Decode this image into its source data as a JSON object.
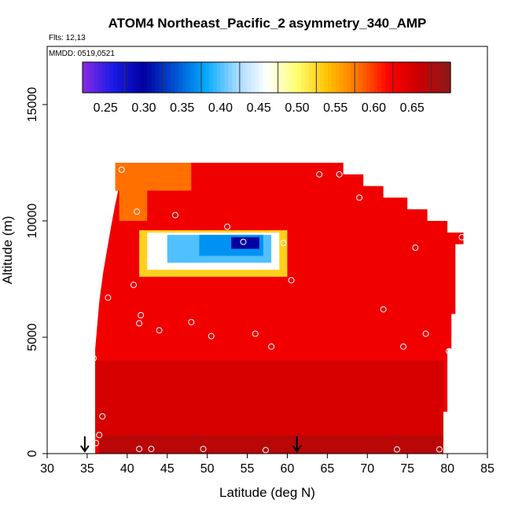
{
  "chart_data": {
    "type": "heatmap",
    "title": "ATOM4 Northeast_Pacific_2 asymmetry_340_AMP",
    "flights_label": "Flts: 12,13",
    "date_label": "MMDD: 0519,0521",
    "xlabel": "Latitude (deg N)",
    "ylabel": "Altitude (m)",
    "xlim": [
      30,
      85
    ],
    "ylim": [
      0,
      17500
    ],
    "x_ticks": [
      30,
      35,
      40,
      45,
      50,
      55,
      60,
      65,
      70,
      75,
      80,
      85
    ],
    "y_ticks": [
      0,
      5000,
      10000,
      15000
    ],
    "colorbar": {
      "min": 0.22,
      "max": 0.7,
      "ticks": [
        0.25,
        0.3,
        0.35,
        0.4,
        0.45,
        0.5,
        0.55,
        0.6,
        0.65
      ],
      "tick_labels": [
        "0.25",
        "0.30",
        "0.35",
        "0.40",
        "0.45",
        "0.50",
        "0.55",
        "0.60",
        "0.65"
      ],
      "colors": [
        "#8a2be2",
        "#1a1ae6",
        "#0000a0",
        "#0050d0",
        "#00a8ff",
        "#9fd8ff",
        "#ffffff",
        "#ffff70",
        "#ffc000",
        "#ff7000",
        "#ff0000",
        "#c80000",
        "#8b1a1a"
      ]
    },
    "background_value": 0.63,
    "region_outline": [
      [
        36.0,
        0
      ],
      [
        36.0,
        4500
      ],
      [
        36.5,
        6500
      ],
      [
        37.0,
        7800
      ],
      [
        37.5,
        8800
      ],
      [
        38.0,
        9800
      ],
      [
        38.5,
        10700
      ],
      [
        39.0,
        11500
      ],
      [
        39.2,
        12500
      ],
      [
        67.0,
        12500
      ],
      [
        67.0,
        12000
      ],
      [
        69.5,
        12000
      ],
      [
        69.5,
        11500
      ],
      [
        72.0,
        11500
      ],
      [
        72.0,
        11000
      ],
      [
        75.0,
        11000
      ],
      [
        75.0,
        10500
      ],
      [
        77.5,
        10500
      ],
      [
        77.5,
        10000
      ],
      [
        80.0,
        10000
      ],
      [
        80.0,
        9500
      ],
      [
        82.0,
        9500
      ],
      [
        82.0,
        9000
      ],
      [
        81.0,
        9000
      ],
      [
        81.0,
        6000
      ],
      [
        80.5,
        6000
      ],
      [
        80.5,
        4500
      ],
      [
        80.0,
        4500
      ],
      [
        80.0,
        1800
      ],
      [
        79.5,
        1800
      ],
      [
        79.5,
        0
      ]
    ],
    "features": [
      {
        "shape": "rect",
        "x0": 38.5,
        "x1": 48.0,
        "y0": 11300,
        "y1": 12500,
        "value": 0.58
      },
      {
        "shape": "rect",
        "x0": 39.0,
        "x1": 42.5,
        "y0": 10000,
        "y1": 11300,
        "value": 0.58
      },
      {
        "shape": "rect",
        "x0": 41.5,
        "x1": 60.0,
        "y0": 7600,
        "y1": 9600,
        "value": 0.53
      },
      {
        "shape": "rect",
        "x0": 42.5,
        "x1": 59.0,
        "y0": 7900,
        "y1": 9500,
        "value": 0.46
      },
      {
        "shape": "rect",
        "x0": 45.0,
        "x1": 58.0,
        "y0": 8200,
        "y1": 9400,
        "value": 0.4
      },
      {
        "shape": "rect",
        "x0": 49.0,
        "x1": 57.0,
        "y0": 8500,
        "y1": 9400,
        "value": 0.37
      },
      {
        "shape": "rect",
        "x0": 53.0,
        "x1": 56.5,
        "y0": 8800,
        "y1": 9300,
        "value": 0.3
      },
      {
        "shape": "rect",
        "x0": 36.5,
        "x1": 79.5,
        "y0": 0,
        "y1": 800,
        "value": 0.67
      },
      {
        "shape": "rect",
        "x0": 36.0,
        "x1": 79.5,
        "y0": 800,
        "y1": 4000,
        "value": 0.65
      }
    ],
    "observations": [
      [
        39.3,
        12200
      ],
      [
        64.0,
        12000
      ],
      [
        66.5,
        12000
      ],
      [
        69.0,
        11000
      ],
      [
        41.2,
        10400
      ],
      [
        46.0,
        10250
      ],
      [
        52.5,
        9750
      ],
      [
        54.5,
        9100
      ],
      [
        59.5,
        9050
      ],
      [
        76.0,
        8850
      ],
      [
        81.8,
        9300
      ],
      [
        40.8,
        7250
      ],
      [
        60.5,
        7450
      ],
      [
        37.6,
        6700
      ],
      [
        41.7,
        5950
      ],
      [
        41.5,
        5600
      ],
      [
        48.0,
        5650
      ],
      [
        72.0,
        6200
      ],
      [
        44.0,
        5300
      ],
      [
        50.5,
        5050
      ],
      [
        56.0,
        5150
      ],
      [
        58.0,
        4600
      ],
      [
        74.5,
        4600
      ],
      [
        77.3,
        5150
      ],
      [
        80.2,
        4400
      ],
      [
        35.8,
        4100
      ],
      [
        36.9,
        1600
      ],
      [
        36.5,
        800
      ],
      [
        36.1,
        450
      ],
      [
        41.5,
        200
      ],
      [
        43.0,
        200
      ],
      [
        49.5,
        200
      ],
      [
        57.3,
        150
      ],
      [
        73.7,
        180
      ],
      [
        79.0,
        180
      ]
    ],
    "flight_markers": [
      34.7,
      61.2
    ]
  }
}
